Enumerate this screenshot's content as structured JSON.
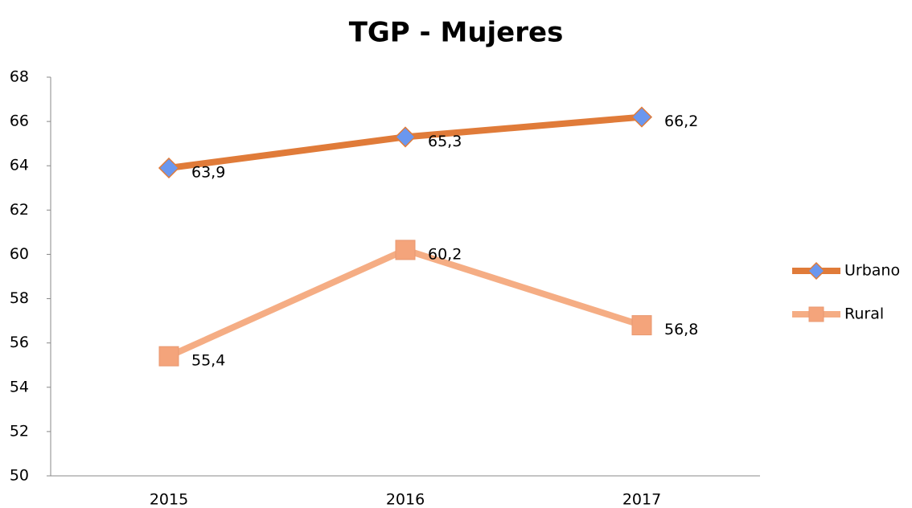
{
  "chart_data": {
    "type": "line",
    "title": "TGP - Mujeres",
    "categories": [
      "2015",
      "2016",
      "2017"
    ],
    "series": [
      {
        "name": "Urbano",
        "color": "#e07b39",
        "marker": "diamond",
        "marker_color": "#6a97ef",
        "values": [
          63.9,
          65.3,
          66.2
        ],
        "value_labels": [
          "63,9",
          "65,3",
          "66,2"
        ]
      },
      {
        "name": "Rural",
        "color": "#f5ad84",
        "marker": "square",
        "marker_color": "#f4a47b",
        "values": [
          55.4,
          60.2,
          56.8
        ],
        "value_labels": [
          "55,4",
          "60,2",
          "56,8"
        ]
      }
    ],
    "ylim": [
      50,
      68
    ],
    "yticks": [
      50,
      52,
      54,
      56,
      58,
      60,
      62,
      64,
      66,
      68
    ],
    "legend": "right"
  }
}
